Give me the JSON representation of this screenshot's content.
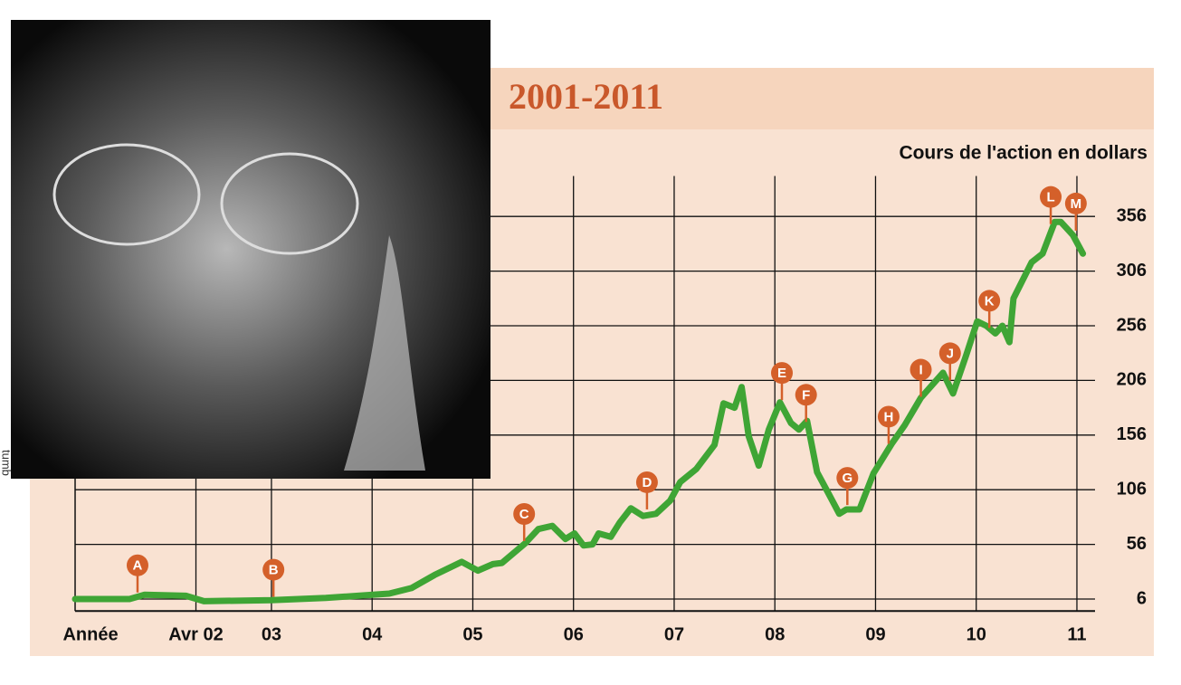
{
  "chart_data": {
    "type": "line",
    "title": "2001-2011",
    "ylabel": "Cours de l'action en dollars",
    "xlabel": "Année",
    "color": "#3fa535",
    "x": [
      2001.05,
      2001.59,
      2001.74,
      2002.15,
      2002.33,
      2003.0,
      2003.54,
      2004.17,
      2004.39,
      2004.62,
      2004.89,
      2005.05,
      2005.2,
      2005.29,
      2005.52,
      2005.65,
      2005.79,
      2005.92,
      2006.01,
      2006.1,
      2006.19,
      2006.25,
      2006.37,
      2006.46,
      2006.57,
      2006.69,
      2006.82,
      2006.96,
      2007.06,
      2007.22,
      2007.4,
      2007.49,
      2007.6,
      2007.67,
      2007.74,
      2007.84,
      2007.94,
      2008.05,
      2008.16,
      2008.24,
      2008.32,
      2008.42,
      2008.53,
      2008.64,
      2008.71,
      2008.84,
      2008.98,
      2009.16,
      2009.29,
      2009.45,
      2009.67,
      2009.77,
      2009.9,
      2010.01,
      2010.1,
      2010.19,
      2010.26,
      2010.33,
      2010.37,
      2010.55,
      2010.66,
      2010.78,
      2010.84,
      2010.96,
      2011.06
    ],
    "values": [
      6,
      6,
      10,
      9,
      4,
      5,
      7,
      11,
      16,
      28,
      40,
      32,
      38,
      39,
      57,
      70,
      73,
      61,
      66,
      55,
      56,
      66,
      63,
      76,
      89,
      82,
      84,
      96,
      113,
      125,
      147,
      185,
      181,
      200,
      155,
      128,
      161,
      186,
      167,
      161,
      169,
      122,
      103,
      84,
      88,
      88,
      121,
      148,
      165,
      190,
      213,
      194,
      229,
      260,
      256,
      249,
      256,
      241,
      281,
      314,
      322,
      351,
      351,
      339,
      322
    ],
    "xlim": [
      2001.05,
      2011.18
    ],
    "ylim": [
      -5,
      393
    ],
    "xticks": [
      {
        "value": 2002.25,
        "label": "Avr 02"
      },
      {
        "value": 2003,
        "label": "03"
      },
      {
        "value": 2004,
        "label": "04"
      },
      {
        "value": 2005,
        "label": "05"
      },
      {
        "value": 2006,
        "label": "06"
      },
      {
        "value": 2007,
        "label": "07"
      },
      {
        "value": 2008,
        "label": "08"
      },
      {
        "value": 2009,
        "label": "09"
      },
      {
        "value": 2010,
        "label": "10"
      },
      {
        "value": 2011,
        "label": "11"
      }
    ],
    "yticks": [
      6,
      56,
      106,
      156,
      206,
      256,
      306,
      356
    ],
    "grid": true,
    "annotations": [
      {
        "label": "A",
        "x": 2001.67,
        "y": 12
      },
      {
        "label": "B",
        "x": 2003.02,
        "y": 8
      },
      {
        "label": "C",
        "x": 2005.51,
        "y": 59
      },
      {
        "label": "D",
        "x": 2006.73,
        "y": 88
      },
      {
        "label": "E",
        "x": 2008.07,
        "y": 188
      },
      {
        "label": "F",
        "x": 2008.31,
        "y": 168
      },
      {
        "label": "G",
        "x": 2008.72,
        "y": 92
      },
      {
        "label": "H",
        "x": 2009.13,
        "y": 148
      },
      {
        "label": "I",
        "x": 2009.45,
        "y": 191
      },
      {
        "label": "J",
        "x": 2009.74,
        "y": 206
      },
      {
        "label": "K",
        "x": 2010.13,
        "y": 254
      },
      {
        "label": "L",
        "x": 2010.74,
        "y": 349
      },
      {
        "label": "M",
        "x": 2010.99,
        "y": 343
      }
    ],
    "photo_credit": "tumb"
  }
}
